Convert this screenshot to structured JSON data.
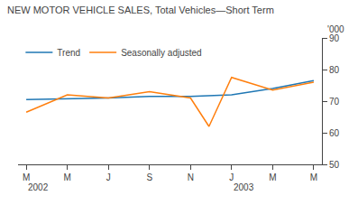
{
  "chart_data": {
    "type": "line",
    "title": "NEW MOTOR VEHICLE SALES, Total Vehicles—Short Term",
    "ylabel": "'000",
    "series": [
      {
        "name": "Trend",
        "x": [
          0,
          1,
          2,
          3,
          4,
          5,
          6,
          7
        ],
        "values": [
          70.5,
          70.7,
          71.0,
          71.5,
          71.5,
          72.0,
          74.0,
          76.5
        ]
      },
      {
        "name": "Seasonally adjusted",
        "x": [
          0,
          1,
          2,
          3,
          4,
          4.45,
          5,
          6,
          7
        ],
        "values": [
          66.5,
          72.0,
          71.0,
          73.0,
          71.0,
          62.0,
          77.5,
          73.5,
          76.0
        ]
      }
    ],
    "xlim": [
      -0.2,
      7.2
    ],
    "xticks": [
      {
        "value": 0,
        "label": "M"
      },
      {
        "value": 1,
        "label": "M"
      },
      {
        "value": 2,
        "label": "J"
      },
      {
        "value": 3,
        "label": "S"
      },
      {
        "value": 4,
        "label": "N"
      },
      {
        "value": 5,
        "label": "J"
      },
      {
        "value": 6,
        "label": "M"
      },
      {
        "value": 7,
        "label": "M"
      }
    ],
    "ylim": [
      50,
      90
    ],
    "yticks": [
      50,
      60,
      70,
      80,
      90
    ],
    "annotations": [
      {
        "text": "2002",
        "x": 0
      },
      {
        "text": "2003",
        "x": 5
      }
    ],
    "grid": false,
    "legend": "upper left"
  }
}
